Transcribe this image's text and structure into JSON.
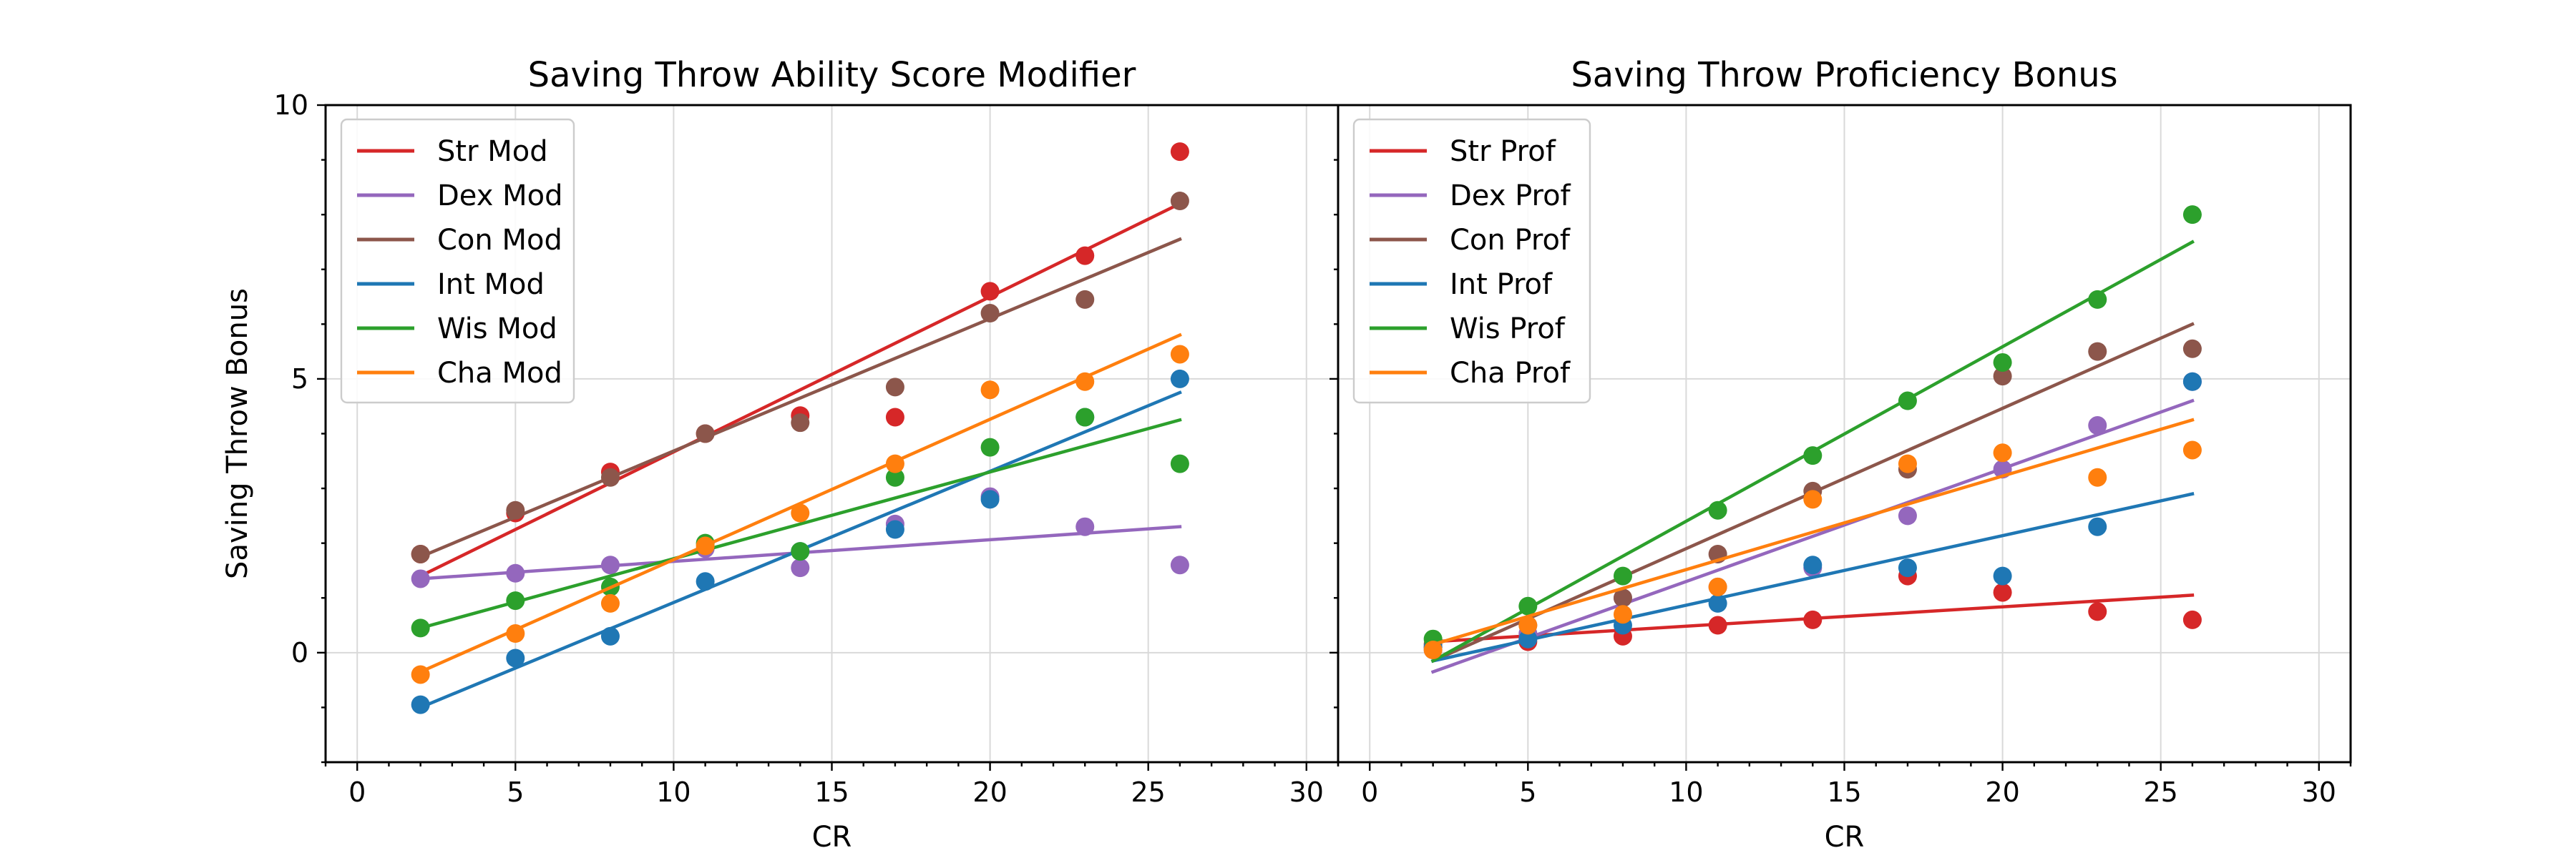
{
  "figure": {
    "ylabel": "Saving Throw Bonus",
    "xlabel": "CR"
  },
  "chart_data": [
    {
      "type": "scatter",
      "title": "Saving Throw Ability Score Modifier",
      "xlabel": "CR",
      "ylabel": "Saving Throw Bonus",
      "xlim": [
        -1,
        31
      ],
      "ylim": [
        -2,
        10
      ],
      "xticks": [
        0,
        5,
        10,
        15,
        20,
        25,
        30
      ],
      "yticks": [
        0,
        5,
        10
      ],
      "grid": true,
      "legend": "top-left",
      "x": [
        2,
        5,
        8,
        11,
        14,
        17,
        20,
        23,
        26
      ],
      "series": [
        {
          "name": "Str Mod",
          "color": "#d62728",
          "values": [
            1.8,
            2.55,
            3.3,
            4.0,
            4.33,
            4.3,
            6.6,
            7.25,
            9.15
          ],
          "fit": [
            1.4,
            8.2
          ]
        },
        {
          "name": "Dex Mod",
          "color": "#9467bd",
          "values": [
            1.35,
            1.45,
            1.6,
            1.9,
            1.55,
            2.35,
            2.85,
            2.3,
            1.6
          ],
          "fit": [
            1.35,
            2.3
          ]
        },
        {
          "name": "Con Mod",
          "color": "#8c564b",
          "values": [
            1.8,
            2.6,
            3.2,
            4.0,
            4.2,
            4.85,
            6.2,
            6.45,
            8.25
          ],
          "fit": [
            1.75,
            7.55
          ]
        },
        {
          "name": "Int Mod",
          "color": "#1f77b4",
          "values": [
            -0.95,
            -0.1,
            0.3,
            1.3,
            1.85,
            2.25,
            2.8,
            4.3,
            5.0
          ],
          "fit": [
            -1.0,
            4.75
          ]
        },
        {
          "name": "Wis Mod",
          "color": "#2ca02c",
          "values": [
            0.45,
            0.95,
            1.2,
            2.0,
            1.85,
            3.2,
            3.75,
            4.3,
            3.45
          ],
          "fit": [
            0.45,
            4.25
          ]
        },
        {
          "name": "Cha Mod",
          "color": "#ff7f0e",
          "values": [
            -0.4,
            0.35,
            0.9,
            1.95,
            2.55,
            3.45,
            4.8,
            4.95,
            5.45
          ],
          "fit": [
            -0.35,
            5.8
          ]
        }
      ]
    },
    {
      "type": "scatter",
      "title": "Saving Throw Proficiency Bonus",
      "xlabel": "CR",
      "ylabel": "",
      "xlim": [
        -1,
        31
      ],
      "ylim": [
        -2,
        10
      ],
      "xticks": [
        0,
        5,
        10,
        15,
        20,
        25,
        30
      ],
      "yticks": [
        0,
        5,
        10
      ],
      "grid": true,
      "legend": "top-left",
      "x": [
        2,
        5,
        8,
        11,
        14,
        17,
        20,
        23,
        26
      ],
      "series": [
        {
          "name": "Str Prof",
          "color": "#d62728",
          "values": [
            0.1,
            0.2,
            0.3,
            0.5,
            0.6,
            1.4,
            1.1,
            0.75,
            0.6
          ],
          "fit": [
            0.2,
            1.05
          ]
        },
        {
          "name": "Dex Prof",
          "color": "#9467bd",
          "values": [
            0.05,
            0.35,
            1.0,
            1.2,
            1.55,
            2.5,
            3.35,
            4.15,
            4.95
          ],
          "fit": [
            -0.35,
            4.6
          ]
        },
        {
          "name": "Con Prof",
          "color": "#8c564b",
          "values": [
            0.15,
            0.5,
            1.0,
            1.8,
            2.95,
            3.35,
            5.05,
            5.5,
            5.55
          ],
          "fit": [
            -0.15,
            6.0
          ]
        },
        {
          "name": "Int Prof",
          "color": "#1f77b4",
          "values": [
            0.1,
            0.25,
            0.5,
            0.9,
            1.6,
            1.55,
            1.4,
            2.3,
            4.95
          ],
          "fit": [
            -0.15,
            2.9
          ]
        },
        {
          "name": "Wis Prof",
          "color": "#2ca02c",
          "values": [
            0.25,
            0.85,
            1.4,
            2.6,
            3.6,
            4.6,
            5.3,
            6.45,
            8.0
          ],
          "fit": [
            -0.15,
            7.5
          ]
        },
        {
          "name": "Cha Prof",
          "color": "#ff7f0e",
          "values": [
            0.05,
            0.5,
            0.7,
            1.2,
            2.8,
            3.45,
            3.65,
            3.2,
            3.7
          ],
          "fit": [
            0.15,
            4.25
          ]
        }
      ]
    }
  ]
}
